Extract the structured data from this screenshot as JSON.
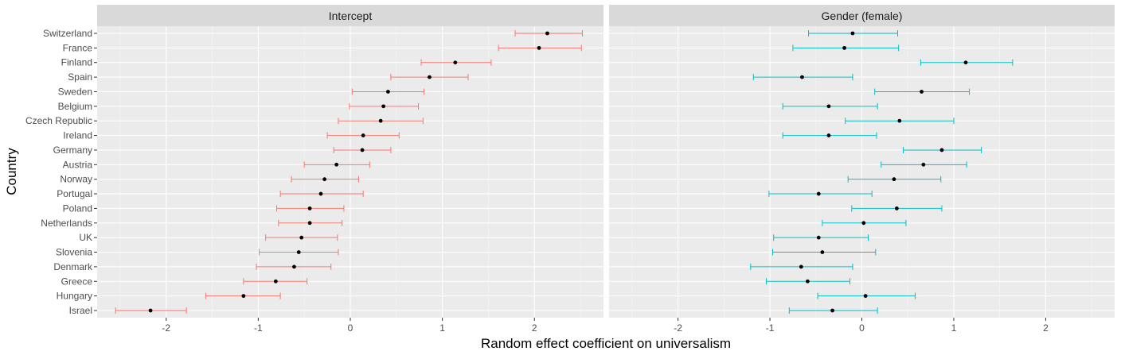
{
  "chart_data": {
    "type": "scatter",
    "variant": "coefficient plot with horizontal error bars, faceted",
    "xlabel": "Random effect coefficient on universalism",
    "ylabel": "Country",
    "xlim": [
      -2.75,
      2.75
    ],
    "x_ticks": [
      -2,
      -1,
      0,
      1,
      2
    ],
    "grid": true,
    "legend": "none",
    "countries": [
      "Switzerland",
      "France",
      "Finland",
      "Spain",
      "Sweden",
      "Belgium",
      "Czech Republic",
      "Ireland",
      "Germany",
      "Austria",
      "Norway",
      "Portugal",
      "Poland",
      "Netherlands",
      "UK",
      "Slovenia",
      "Denmark",
      "Greece",
      "Hungary",
      "Israel"
    ],
    "panels": [
      {
        "name": "Intercept",
        "color": "#F8766D",
        "estimate": [
          2.14,
          2.05,
          1.14,
          0.86,
          0.41,
          0.36,
          0.33,
          0.14,
          0.13,
          -0.15,
          -0.28,
          -0.32,
          -0.44,
          -0.44,
          -0.53,
          -0.56,
          -0.61,
          -0.81,
          -1.16,
          -2.17
        ],
        "lower": [
          1.79,
          1.61,
          0.77,
          0.44,
          0.02,
          -0.01,
          -0.13,
          -0.25,
          -0.18,
          -0.5,
          -0.64,
          -0.76,
          -0.8,
          -0.78,
          -0.92,
          -0.99,
          -1.02,
          -1.16,
          -1.57,
          -2.55
        ],
        "upper": [
          2.52,
          2.51,
          1.53,
          1.28,
          0.8,
          0.74,
          0.79,
          0.53,
          0.44,
          0.21,
          0.09,
          0.14,
          -0.07,
          -0.09,
          -0.14,
          -0.13,
          -0.21,
          -0.47,
          -0.76,
          -1.78
        ]
      },
      {
        "name": "Gender (female)",
        "color": "#00BFC4",
        "estimate": [
          -0.1,
          -0.19,
          1.13,
          -0.65,
          0.65,
          -0.36,
          0.41,
          -0.36,
          0.87,
          0.67,
          0.35,
          -0.47,
          0.38,
          0.02,
          -0.47,
          -0.43,
          -0.66,
          -0.59,
          0.04,
          -0.32
        ],
        "lower": [
          -0.58,
          -0.75,
          0.64,
          -1.18,
          0.14,
          -0.86,
          -0.18,
          -0.86,
          0.45,
          0.21,
          -0.15,
          -1.01,
          -0.11,
          -0.43,
          -0.96,
          -0.97,
          -1.21,
          -1.04,
          -0.48,
          -0.79
        ],
        "upper": [
          0.39,
          0.4,
          1.64,
          -0.1,
          1.17,
          0.17,
          1.0,
          0.16,
          1.3,
          1.14,
          0.86,
          0.11,
          0.87,
          0.48,
          0.07,
          0.15,
          -0.1,
          -0.13,
          0.58,
          0.17
        ]
      }
    ]
  }
}
